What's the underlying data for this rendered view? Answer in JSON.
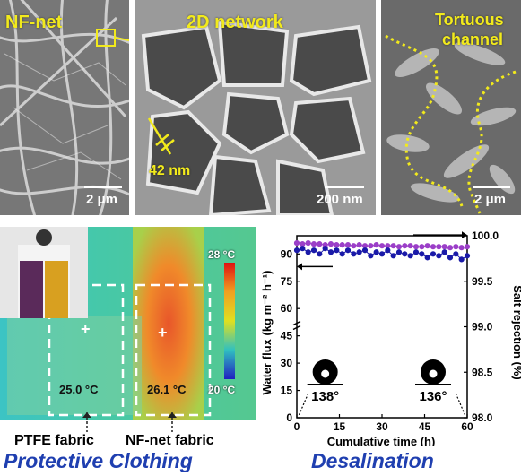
{
  "sem_panels": {
    "panel1": {
      "label": "NF-net",
      "scale": "2 μm"
    },
    "panel2": {
      "label": "2D network",
      "annotation": "42 nm",
      "scale": "200 nm"
    },
    "panel3": {
      "label_line1": "Tortuous",
      "label_line2": "channel",
      "scale": "2 μm"
    }
  },
  "thermal": {
    "colorbar_max": "28 °C",
    "colorbar_min": "20 °C",
    "left_temp": "25.0 °C",
    "right_temp": "26.1 °C",
    "left_fabric": "PTFE fabric",
    "right_fabric": "NF-net fabric",
    "title": "Protective Clothing"
  },
  "desal_title": "Desalination",
  "chart_data": {
    "type": "scatter",
    "xlabel": "Cumulative time (h)",
    "ylabel_left": "Water flux (kg m⁻² h⁻¹)",
    "ylabel_right": "Salt rejection (%)",
    "x_ticks": [
      "0",
      "15",
      "30",
      "45",
      "60"
    ],
    "y_left_ticks": [
      "0",
      "15",
      "30",
      "45",
      "60",
      "75",
      "90"
    ],
    "y_right_ticks": [
      "98.0",
      "98.5",
      "99.0",
      "99.5",
      "100.0"
    ],
    "xlim": [
      0,
      60
    ],
    "ylim_left": [
      0,
      100
    ],
    "ylim_right": [
      98.0,
      100.0
    ],
    "series": [
      {
        "axis": "right",
        "color": "#9b3fc8",
        "x": [
          0,
          2,
          4,
          6,
          8,
          10,
          12,
          14,
          16,
          18,
          20,
          22,
          24,
          26,
          28,
          30,
          32,
          34,
          36,
          38,
          40,
          42,
          44,
          46,
          48,
          50,
          52,
          54,
          56,
          58,
          60
        ],
        "values": [
          99.92,
          99.91,
          99.92,
          99.91,
          99.91,
          99.9,
          99.91,
          99.9,
          99.9,
          99.9,
          99.89,
          99.9,
          99.89,
          99.89,
          99.9,
          99.89,
          99.89,
          99.89,
          99.88,
          99.89,
          99.89,
          99.88,
          99.88,
          99.89,
          99.88,
          99.88,
          99.88,
          99.87,
          99.88,
          99.87,
          99.88
        ]
      },
      {
        "axis": "left",
        "color": "#1a1aa8",
        "x": [
          0,
          2,
          4,
          6,
          8,
          10,
          12,
          14,
          16,
          18,
          20,
          22,
          24,
          26,
          28,
          30,
          32,
          34,
          36,
          38,
          40,
          42,
          44,
          46,
          48,
          50,
          52,
          54,
          56,
          58,
          60
        ],
        "values": [
          92,
          93,
          91,
          92,
          90,
          93,
          91,
          92,
          90,
          92,
          90,
          91,
          92,
          89,
          91,
          90,
          92,
          89,
          91,
          90,
          89,
          91,
          90,
          88,
          90,
          89,
          91,
          88,
          90,
          87,
          89
        ]
      }
    ],
    "contact_angles": [
      "138°",
      "136°"
    ]
  }
}
